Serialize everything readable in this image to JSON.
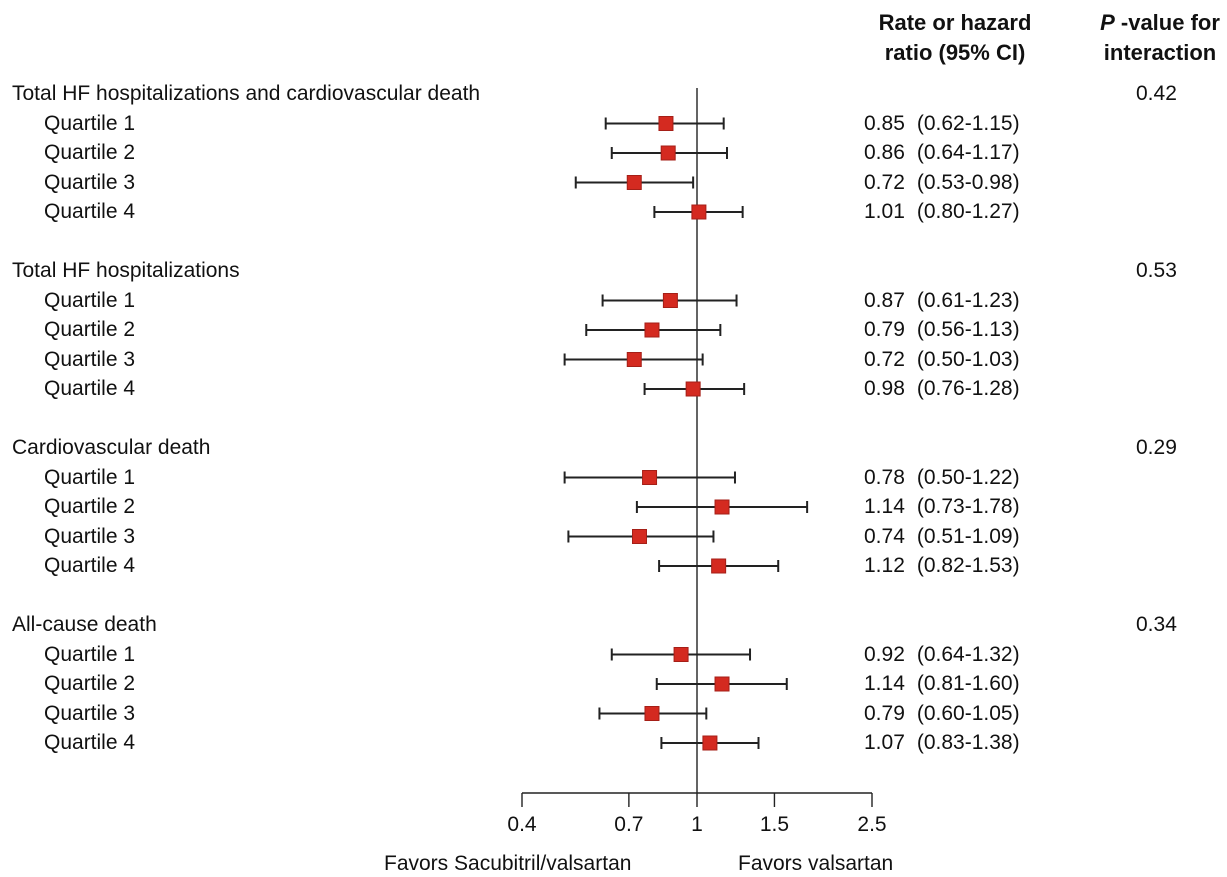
{
  "headers": {
    "rate_line1": "Rate or hazard",
    "rate_line2": "ratio (95% CI)",
    "p_italic": "P",
    "p_rest": " -value for",
    "p_line2": "interaction"
  },
  "footer": {
    "favors_left": "Favors Sacubitril/valsartan",
    "favors_right": "Favors valsartan"
  },
  "chart_data": {
    "type": "forest",
    "x_scale": "log",
    "xlim": [
      0.4,
      2.5
    ],
    "reference_line": 1,
    "ticks": [
      0.4,
      0.7,
      1,
      1.5,
      2.5
    ],
    "tick_labels": [
      "0.4",
      "0.7",
      "1",
      "1.5",
      "2.5"
    ],
    "marker_color": "#d42a20",
    "groups": [
      {
        "label": "Total HF hospitalizations and cardiovascular death",
        "p_interaction": "0.42",
        "rows": [
          {
            "label": "Quartile 1",
            "est": 0.85,
            "lo": 0.62,
            "hi": 1.15,
            "text": "0.85",
            "ci_text": "(0.62-1.15)"
          },
          {
            "label": "Quartile 2",
            "est": 0.86,
            "lo": 0.64,
            "hi": 1.17,
            "text": "0.86",
            "ci_text": "(0.64-1.17)"
          },
          {
            "label": "Quartile 3",
            "est": 0.72,
            "lo": 0.53,
            "hi": 0.98,
            "text": "0.72",
            "ci_text": "(0.53-0.98)"
          },
          {
            "label": "Quartile 4",
            "est": 1.01,
            "lo": 0.8,
            "hi": 1.27,
            "text": "1.01",
            "ci_text": "(0.80-1.27)"
          }
        ]
      },
      {
        "label": "Total HF hospitalizations",
        "p_interaction": "0.53",
        "rows": [
          {
            "label": "Quartile 1",
            "est": 0.87,
            "lo": 0.61,
            "hi": 1.23,
            "text": "0.87",
            "ci_text": "(0.61-1.23)"
          },
          {
            "label": "Quartile 2",
            "est": 0.79,
            "lo": 0.56,
            "hi": 1.13,
            "text": "0.79",
            "ci_text": "(0.56-1.13)"
          },
          {
            "label": "Quartile 3",
            "est": 0.72,
            "lo": 0.5,
            "hi": 1.03,
            "text": "0.72",
            "ci_text": "(0.50-1.03)"
          },
          {
            "label": "Quartile 4",
            "est": 0.98,
            "lo": 0.76,
            "hi": 1.28,
            "text": "0.98",
            "ci_text": "(0.76-1.28)"
          }
        ]
      },
      {
        "label": "Cardiovascular death",
        "p_interaction": "0.29",
        "rows": [
          {
            "label": "Quartile 1",
            "est": 0.78,
            "lo": 0.5,
            "hi": 1.22,
            "text": "0.78",
            "ci_text": "(0.50-1.22)"
          },
          {
            "label": "Quartile 2",
            "est": 1.14,
            "lo": 0.73,
            "hi": 1.78,
            "text": "1.14",
            "ci_text": "(0.73-1.78)"
          },
          {
            "label": "Quartile 3",
            "est": 0.74,
            "lo": 0.51,
            "hi": 1.09,
            "text": "0.74",
            "ci_text": "(0.51-1.09)"
          },
          {
            "label": "Quartile 4",
            "est": 1.12,
            "lo": 0.82,
            "hi": 1.53,
            "text": "1.12",
            "ci_text": "(0.82-1.53)"
          }
        ]
      },
      {
        "label": "All-cause death",
        "p_interaction": "0.34",
        "rows": [
          {
            "label": "Quartile 1",
            "est": 0.92,
            "lo": 0.64,
            "hi": 1.32,
            "text": "0.92",
            "ci_text": "(0.64-1.32)"
          },
          {
            "label": "Quartile 2",
            "est": 1.14,
            "lo": 0.81,
            "hi": 1.6,
            "text": "1.14",
            "ci_text": "(0.81-1.60)"
          },
          {
            "label": "Quartile 3",
            "est": 0.79,
            "lo": 0.6,
            "hi": 1.05,
            "text": "0.79",
            "ci_text": "(0.60-1.05)"
          },
          {
            "label": "Quartile 4",
            "est": 1.07,
            "lo": 0.83,
            "hi": 1.38,
            "text": "1.07",
            "ci_text": "(0.83-1.38)"
          }
        ]
      }
    ]
  }
}
